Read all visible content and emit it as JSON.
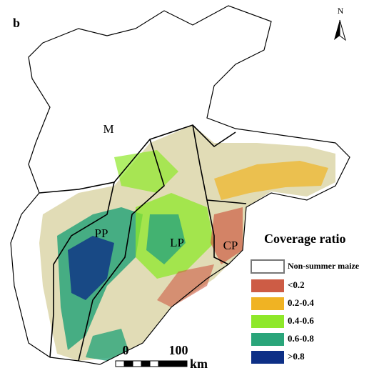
{
  "panel_label": "b",
  "north_arrow": "N",
  "regions": [
    {
      "label": "M"
    },
    {
      "label": "PP"
    },
    {
      "label": "LP"
    },
    {
      "label": "CP"
    }
  ],
  "legend": {
    "title": "Coverage ratio",
    "items": [
      {
        "label": "Non-summer maize",
        "color": "#ffffff"
      },
      {
        "label": "<0.2",
        "color": "#cd5c45"
      },
      {
        "label": "0.2-0.4",
        "color": "#f0b323"
      },
      {
        "label": "0.4-0.6",
        "color": "#8ee82a"
      },
      {
        "label": "0.6-0.8",
        "color": "#2aa57a"
      },
      {
        "label": ">0.8",
        "color": "#0d2f86"
      }
    ]
  },
  "scale_bar": {
    "labels": [
      "0",
      "100"
    ],
    "unit": "km"
  }
}
